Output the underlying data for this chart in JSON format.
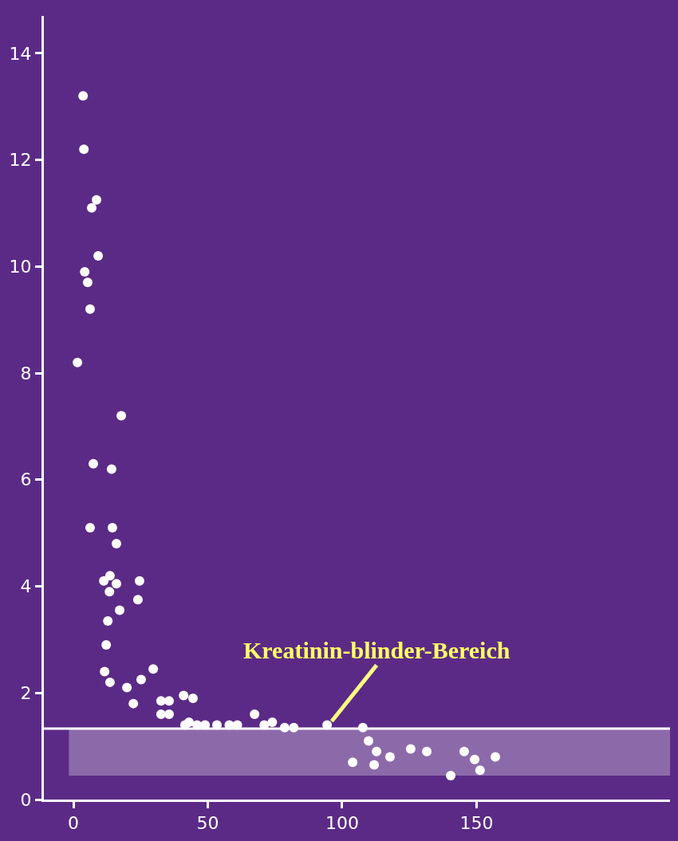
{
  "chart_data": {
    "type": "scatter",
    "x": [
      3.6,
      3.9,
      8.6,
      6.8,
      9.2,
      4.2,
      5.3,
      6.2,
      1.5,
      17.8,
      7.4,
      14.2,
      6.2,
      14.5,
      16,
      13.6,
      11.3,
      16,
      13.4,
      24.6,
      24,
      17.2,
      12.8,
      12.2,
      11.6,
      13.6,
      19.9,
      29.7,
      25.2,
      22.3,
      32.6,
      35.6,
      32.6,
      35.6,
      41,
      44.5,
      43,
      41.5,
      46,
      49,
      53.4,
      58,
      61,
      67.4,
      71,
      74,
      78.6,
      82,
      94.4,
      107.7,
      109.8,
      112.8,
      103.9,
      111.9,
      117.8,
      125.5,
      131.5,
      140.4,
      149.3,
      151.3,
      157,
      145.4
    ],
    "values": [
      13.2,
      12.2,
      11.25,
      11.1,
      10.2,
      9.9,
      9.7,
      9.2,
      8.2,
      7.2,
      6.3,
      6.2,
      5.1,
      5.1,
      4.8,
      4.2,
      4.1,
      4.05,
      3.9,
      4.1,
      3.75,
      3.55,
      3.35,
      2.9,
      2.4,
      2.2,
      2.1,
      2.45,
      2.25,
      1.8,
      1.85,
      1.85,
      1.6,
      1.6,
      1.95,
      1.9,
      1.45,
      1.4,
      1.4,
      1.4,
      1.4,
      1.4,
      1.4,
      1.6,
      1.4,
      1.45,
      1.35,
      1.35,
      1.4,
      1.35,
      1.1,
      0.9,
      0.7,
      0.65,
      0.8,
      0.95,
      0.9,
      0.45,
      0.75,
      0.55,
      0.8,
      0.9
    ],
    "color": "#ffffff",
    "marker": "circle",
    "xlim": [
      -11,
      222
    ],
    "ylim": [
      0,
      14.7
    ],
    "xticks": [
      0,
      50,
      100,
      150
    ],
    "yticks": [
      0,
      2,
      4,
      6,
      8,
      10,
      12,
      14
    ],
    "grid": false,
    "ref_lines": [
      {
        "axis": "y",
        "value": 1.33,
        "color": "#ffffff",
        "line_style": "solid"
      }
    ],
    "bands": [
      {
        "axis": "y",
        "from": 0.45,
        "to": 1.33,
        "color": "#ffffff"
      }
    ],
    "annotations": [
      {
        "text": "Kreatinin-blinder-Bereich",
        "x": 95,
        "y": 1.4
      }
    ]
  }
}
